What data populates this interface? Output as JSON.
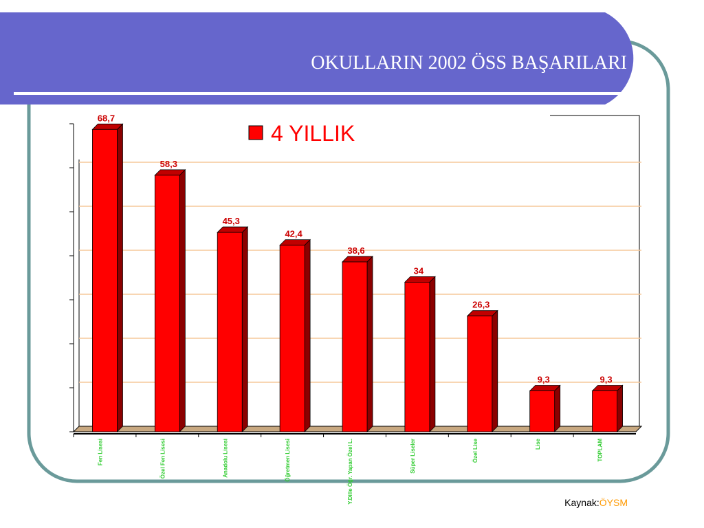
{
  "chart_data": {
    "type": "bar",
    "title": "OKULLARIN 2002 ÖSS BAŞARILARI",
    "source": {
      "label": "Kaynak:",
      "name": "ÖYSM"
    },
    "categories": [
      "Fen Lisesi",
      "Özel Fen Lisesi",
      "Anadolu Lisesi",
      "Öğretmen Lisesi",
      "Y.Dille Öğr. Yapan Özel L.",
      "Süper Liseler",
      "Özel Lise",
      "Lise",
      "TOPLAM"
    ],
    "series": [
      {
        "name": "4 YILLIK",
        "color": "#ff0000",
        "values": [
          68.7,
          58.3,
          45.3,
          42.4,
          38.6,
          34,
          26.3,
          9.3,
          9.3
        ],
        "value_labels": [
          "68,7",
          "58,3",
          "45,3",
          "42,4",
          "38,6",
          "34",
          "26,3",
          "9,3",
          "9,3"
        ]
      }
    ],
    "ylim": [
      0,
      70
    ],
    "yticks": [
      0,
      10,
      20,
      30,
      40,
      50,
      60,
      70
    ],
    "grid": true
  }
}
